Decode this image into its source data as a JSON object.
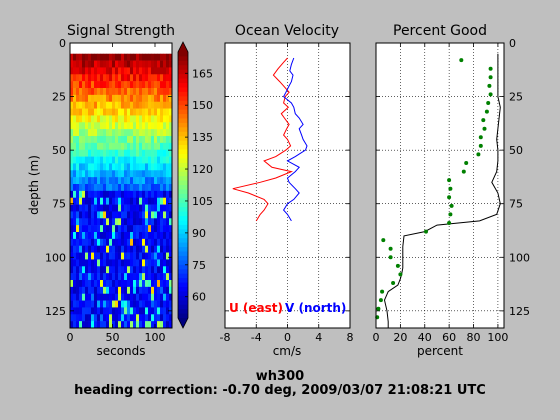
{
  "caption": {
    "line1": "wh300",
    "line2": "heading correction: -0.70 deg, 2009/03/07 21:08:21 UTC"
  },
  "chart_data": [
    {
      "type": "heatmap",
      "title": "Signal Strength",
      "xlabel": "seconds",
      "ylabel": "depth (m)",
      "xlim": [
        0,
        120
      ],
      "ylim": [
        133,
        0
      ],
      "xticks": [
        0,
        50,
        100
      ],
      "yticks": [
        0,
        25,
        50,
        75,
        100,
        125
      ],
      "data_depth_range": [
        5,
        133
      ],
      "colorbar": {
        "range": [
          50,
          175
        ],
        "ticks": [
          60,
          75,
          90,
          105,
          120,
          135,
          150,
          165
        ],
        "colormap": "jet"
      }
    },
    {
      "type": "line",
      "title": "Ocean Velocity",
      "xlabel": "cm/s",
      "xlim": [
        -8,
        8
      ],
      "ylim": [
        133,
        0
      ],
      "xticks": [
        -8,
        -4,
        0,
        4,
        8
      ],
      "yticks": [
        0,
        25,
        50,
        75,
        100,
        125
      ],
      "grid": true,
      "legend_text": [
        {
          "label": "U (east)",
          "color": "#ff0000"
        },
        {
          "label": "V (north)",
          "color": "#0000ff"
        }
      ],
      "series": [
        {
          "name": "U (east)",
          "color": "#ff0000",
          "depth": [
            7,
            9,
            12,
            15,
            18,
            20,
            23,
            25,
            28,
            30,
            33,
            35,
            38,
            40,
            43,
            45,
            48,
            50,
            53,
            55,
            58,
            60,
            63,
            65,
            68,
            70,
            73,
            75,
            78,
            80,
            83
          ],
          "values": [
            0,
            -0.5,
            -1.2,
            -1.8,
            -1.0,
            -0.5,
            0.2,
            -0.3,
            -0.5,
            0.1,
            -0.8,
            -0.4,
            0.2,
            -0.1,
            -0.5,
            0.0,
            0.4,
            -0.2,
            -1.5,
            -3.0,
            -2.0,
            0.5,
            -1.5,
            -3.5,
            -7.0,
            -5.0,
            -3.0,
            -2.5,
            -3.0,
            -3.5,
            -4.0
          ]
        },
        {
          "name": "V (north)",
          "color": "#0000ff",
          "depth": [
            7,
            10,
            13,
            15,
            18,
            20,
            23,
            25,
            28,
            30,
            33,
            35,
            38,
            40,
            43,
            45,
            48,
            50,
            53,
            55,
            58,
            60,
            63,
            65,
            68,
            70,
            73,
            75,
            78,
            80,
            83
          ],
          "values": [
            0.8,
            0.5,
            0.3,
            0.7,
            0.5,
            0.2,
            -0.2,
            -0.5,
            0.5,
            0.8,
            1.0,
            1.5,
            2.0,
            1.5,
            1.8,
            2.0,
            2.5,
            2.3,
            1.0,
            0.0,
            1.5,
            1.0,
            0.0,
            0.2,
            1.0,
            1.5,
            0.8,
            0.0,
            -0.5,
            0.0,
            0.5
          ]
        }
      ]
    },
    {
      "type": "scatter",
      "title": "Percent Good",
      "xlabel": "percent",
      "xlim": [
        0,
        105
      ],
      "ylim": [
        133,
        0
      ],
      "xticks": [
        0,
        20,
        40,
        60,
        80,
        100
      ],
      "yticks": [
        0,
        25,
        50,
        75,
        100,
        125
      ],
      "grid": true,
      "series": [
        {
          "type": "scatter",
          "color": "#008000",
          "depth": [
            8,
            12,
            16,
            20,
            24,
            28,
            32,
            36,
            40,
            44,
            48,
            52,
            56,
            60,
            64,
            68,
            72,
            76,
            80,
            84,
            88,
            92,
            96,
            100,
            104,
            108,
            112,
            116,
            120,
            124,
            128
          ],
          "values": [
            70,
            94,
            94,
            93,
            94,
            92,
            91,
            88,
            89,
            86,
            86,
            84,
            74,
            72,
            60,
            61,
            60,
            62,
            61,
            60,
            41,
            6,
            12,
            12,
            18,
            20,
            14,
            5,
            4,
            2,
            1
          ]
        },
        {
          "type": "line",
          "color": "#000000",
          "depth": [
            5,
            10,
            15,
            20,
            25,
            30,
            35,
            40,
            45,
            50,
            55,
            60,
            65,
            70,
            75,
            80,
            83,
            85,
            88,
            90,
            95,
            100,
            105,
            108,
            110,
            113,
            116,
            120,
            125,
            130,
            133
          ],
          "values": [
            100,
            100,
            100,
            100,
            100,
            102,
            101,
            100,
            99,
            100,
            100,
            99,
            95,
            100,
            102,
            99,
            85,
            50,
            40,
            23,
            22,
            22,
            22,
            21,
            20,
            18,
            10,
            7,
            9,
            10,
            10
          ]
        }
      ]
    }
  ]
}
